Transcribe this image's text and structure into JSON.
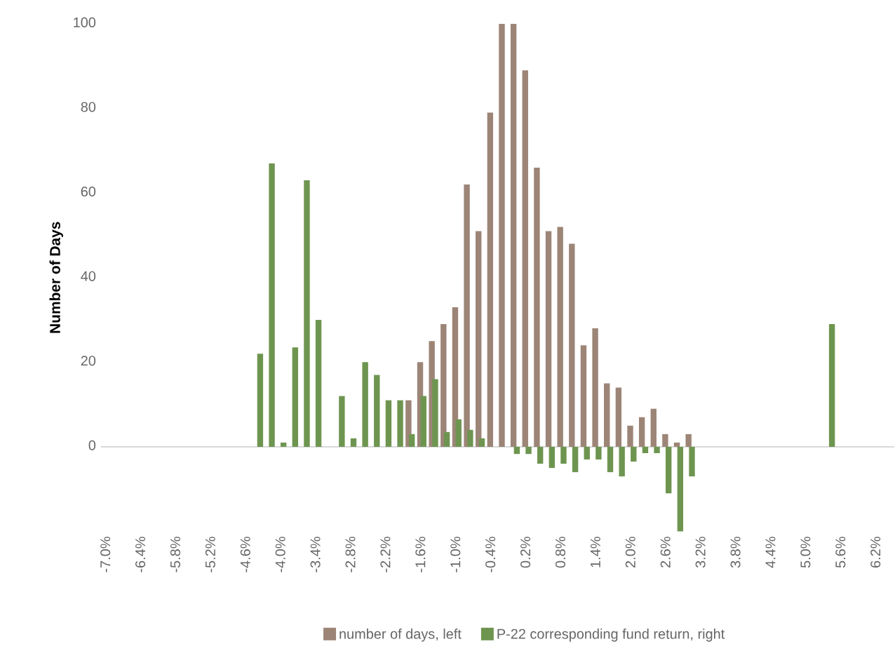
{
  "chart_data": {
    "type": "bar",
    "ylabel": "Number of Days",
    "categories": [
      "-7.0%",
      null,
      null,
      "-6.4%",
      null,
      null,
      "-5.8%",
      null,
      null,
      "-5.2%",
      null,
      null,
      "-4.6%",
      null,
      null,
      "-4.0%",
      null,
      null,
      "-3.4%",
      null,
      null,
      "-2.8%",
      null,
      null,
      "-2.2%",
      null,
      null,
      "-1.6%",
      null,
      null,
      "-1.0%",
      null,
      null,
      "-0.4%",
      null,
      null,
      "0.2%",
      null,
      null,
      "0.8%",
      null,
      null,
      "1.4%",
      null,
      null,
      "2.0%",
      null,
      null,
      "2.6%",
      null,
      null,
      "3.2%",
      null,
      null,
      "3.8%",
      null,
      null,
      "4.4%",
      null,
      null,
      "5.0%",
      null,
      null,
      "5.6%",
      null,
      null,
      "6.2%"
    ],
    "series": [
      {
        "name": "number of days, left",
        "color": "#9c8577",
        "values": [
          null,
          null,
          null,
          null,
          null,
          null,
          null,
          null,
          null,
          null,
          null,
          null,
          null,
          null,
          null,
          null,
          null,
          null,
          null,
          null,
          null,
          null,
          null,
          null,
          null,
          null,
          11,
          20,
          25,
          29,
          33,
          62,
          51,
          79,
          100,
          100,
          89,
          66,
          51,
          52,
          48,
          24,
          28,
          15,
          14,
          5,
          7,
          9,
          3,
          1,
          3,
          null,
          null,
          null,
          null,
          null,
          null,
          null,
          null,
          null,
          null,
          null,
          null,
          null,
          null,
          null,
          null
        ]
      },
      {
        "name": "P-22 corresponding fund return, right",
        "color": "#6e9550",
        "values": [
          null,
          null,
          null,
          null,
          null,
          null,
          null,
          null,
          null,
          null,
          null,
          null,
          null,
          22,
          67,
          1,
          23.5,
          63,
          30,
          null,
          12,
          2,
          20,
          17,
          11,
          11,
          3,
          12,
          16,
          3.5,
          6.5,
          4,
          2,
          null,
          null,
          -1.7,
          -1.7,
          -4,
          -5,
          -4,
          -6,
          -3,
          -3,
          -6,
          -7,
          -3.5,
          -1.5,
          -1.5,
          -11,
          -20,
          -7,
          null,
          null,
          null,
          null,
          null,
          null,
          null,
          null,
          null,
          null,
          null,
          29,
          null,
          null,
          null,
          null
        ]
      }
    ],
    "ylim": [
      -20,
      100
    ],
    "yticks": [
      0,
      20,
      40,
      60,
      80,
      100
    ],
    "legend": "bottom"
  }
}
